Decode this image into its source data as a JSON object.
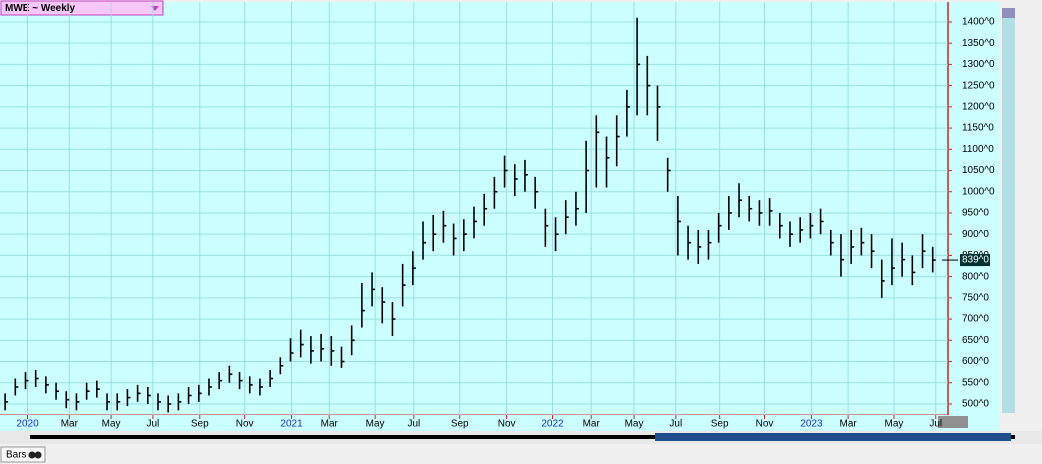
{
  "header": {
    "symbol": "MWE ~ Weekly"
  },
  "footer": {
    "tab": "Bars"
  },
  "chart_data": {
    "type": "ohlc",
    "color": "#000000",
    "grid": true,
    "ylim": [
      474,
      1447
    ],
    "xlim": [
      -0.5,
      92.5
    ],
    "yticks": [
      {
        "value": 500,
        "label": "500^0"
      },
      {
        "value": 550,
        "label": "550^0"
      },
      {
        "value": 600,
        "label": "600^0"
      },
      {
        "value": 650,
        "label": "650^0"
      },
      {
        "value": 700,
        "label": "700^0"
      },
      {
        "value": 750,
        "label": "750^0"
      },
      {
        "value": 800,
        "label": "800^0"
      },
      {
        "value": 850,
        "label": "850^0"
      },
      {
        "value": 900,
        "label": "900^0"
      },
      {
        "value": 950,
        "label": "950^0"
      },
      {
        "value": 1000,
        "label": "1000^0"
      },
      {
        "value": 1050,
        "label": "1050^0"
      },
      {
        "value": 1100,
        "label": "1100^0"
      },
      {
        "value": 1150,
        "label": "1150^0"
      },
      {
        "value": 1200,
        "label": "1200^0"
      },
      {
        "value": 1250,
        "label": "1250^0"
      },
      {
        "value": 1300,
        "label": "1300^0"
      },
      {
        "value": 1350,
        "label": "1350^0"
      },
      {
        "value": 1400,
        "label": "1400^0"
      }
    ],
    "xticks": [
      {
        "value": 2.2,
        "label": "2020"
      },
      {
        "value": 6.3,
        "label": "Mar"
      },
      {
        "value": 10.4,
        "label": "May"
      },
      {
        "value": 14.5,
        "label": "Jul"
      },
      {
        "value": 19.1,
        "label": "Sep"
      },
      {
        "value": 23.5,
        "label": "Nov"
      },
      {
        "value": 28.1,
        "label": "2021"
      },
      {
        "value": 31.8,
        "label": "Mar"
      },
      {
        "value": 36.3,
        "label": "May"
      },
      {
        "value": 40.1,
        "label": "Jul"
      },
      {
        "value": 44.6,
        "label": "Sep"
      },
      {
        "value": 49.2,
        "label": "Nov"
      },
      {
        "value": 53.7,
        "label": "2022"
      },
      {
        "value": 57.5,
        "label": "Mar"
      },
      {
        "value": 61.7,
        "label": "May"
      },
      {
        "value": 65.8,
        "label": "Jul"
      },
      {
        "value": 70.1,
        "label": "Sep"
      },
      {
        "value": 74.5,
        "label": "Nov"
      },
      {
        "value": 79.1,
        "label": "2023"
      },
      {
        "value": 82.7,
        "label": "Mar"
      },
      {
        "value": 87.2,
        "label": "May"
      },
      {
        "value": 91.3,
        "label": "Jul"
      }
    ],
    "last": {
      "value": 839,
      "label": "839^0"
    },
    "high": [
      525,
      560,
      575,
      580,
      565,
      550,
      530,
      525,
      550,
      555,
      525,
      525,
      535,
      545,
      540,
      525,
      520,
      525,
      540,
      545,
      560,
      575,
      590,
      575,
      565,
      560,
      580,
      610,
      655,
      675,
      660,
      665,
      660,
      635,
      685,
      785,
      810,
      775,
      740,
      830,
      860,
      930,
      945,
      955,
      925,
      935,
      965,
      995,
      1035,
      1085,
      1065,
      1075,
      1035,
      960,
      940,
      980,
      1000,
      1120,
      1180,
      1130,
      1180,
      1240,
      1410,
      1320,
      1250,
      1080,
      990,
      920,
      910,
      910,
      950,
      990,
      1020,
      990,
      980,
      985,
      950,
      930,
      940,
      950,
      960,
      910,
      900,
      910,
      915,
      900,
      840,
      890,
      880,
      850,
      900,
      870
    ],
    "low": [
      485,
      520,
      535,
      540,
      525,
      510,
      490,
      485,
      510,
      515,
      485,
      485,
      495,
      505,
      500,
      485,
      480,
      485,
      500,
      505,
      520,
      535,
      550,
      535,
      525,
      520,
      540,
      570,
      600,
      610,
      595,
      600,
      590,
      585,
      615,
      680,
      730,
      690,
      660,
      730,
      780,
      840,
      860,
      880,
      850,
      860,
      890,
      920,
      960,
      1010,
      990,
      1000,
      960,
      870,
      860,
      900,
      920,
      950,
      1010,
      1010,
      1060,
      1130,
      1180,
      1180,
      1120,
      1000,
      850,
      840,
      830,
      840,
      880,
      910,
      940,
      930,
      920,
      920,
      890,
      870,
      880,
      890,
      900,
      850,
      800,
      830,
      850,
      820,
      750,
      780,
      800,
      780,
      820,
      810
    ],
    "close": [
      505,
      540,
      555,
      560,
      545,
      530,
      510,
      505,
      530,
      535,
      505,
      505,
      515,
      525,
      520,
      505,
      500,
      505,
      520,
      525,
      540,
      555,
      570,
      555,
      545,
      540,
      560,
      590,
      620,
      640,
      625,
      630,
      625,
      600,
      650,
      720,
      770,
      740,
      700,
      780,
      820,
      880,
      900,
      920,
      890,
      900,
      930,
      960,
      1000,
      1050,
      1030,
      1040,
      1000,
      920,
      900,
      940,
      960,
      1050,
      1140,
      1080,
      1130,
      1200,
      1300,
      1250,
      1200,
      1050,
      930,
      880,
      870,
      880,
      920,
      950,
      980,
      960,
      950,
      955,
      920,
      900,
      910,
      920,
      930,
      880,
      840,
      870,
      880,
      860,
      790,
      820,
      840,
      810,
      860,
      839
    ]
  }
}
